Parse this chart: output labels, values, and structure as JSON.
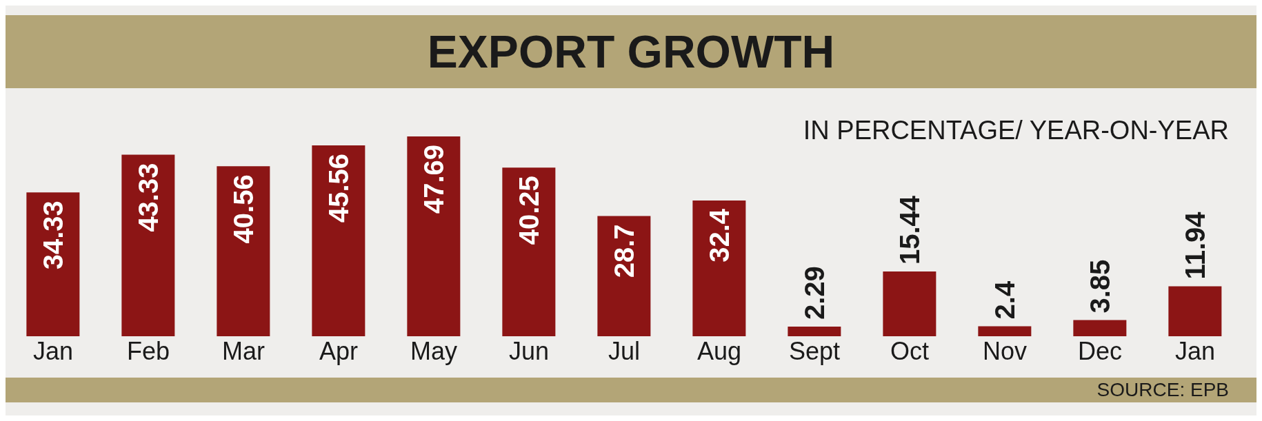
{
  "chart_data": {
    "type": "bar",
    "title": "EXPORT GROWTH",
    "subtitle": "IN PERCENTAGE/ YEAR-ON-YEAR",
    "categories": [
      "Jan",
      "Feb",
      "Mar",
      "Apr",
      "May",
      "Jun",
      "Jul",
      "Aug",
      "Sept",
      "Oct",
      "Nov",
      "Dec",
      "Jan"
    ],
    "values": [
      34.33,
      43.33,
      40.56,
      45.56,
      47.69,
      40.25,
      28.7,
      32.4,
      2.29,
      15.44,
      2.4,
      3.85,
      11.94
    ],
    "color": "#8c1515",
    "data_labels": true,
    "grid": false,
    "legend": false,
    "annotations": [
      "SOURCE: EPB"
    ]
  }
}
